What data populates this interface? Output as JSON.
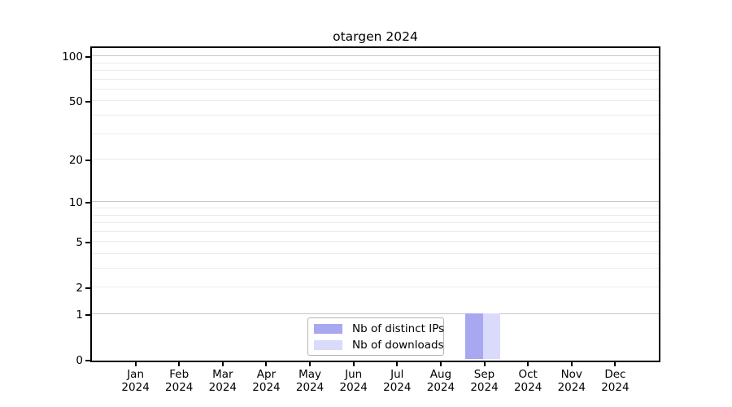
{
  "chart_data": {
    "type": "bar",
    "title": "otargen 2024",
    "categories": [
      "Jan 2024",
      "Feb 2024",
      "Mar 2024",
      "Apr 2024",
      "May 2024",
      "Jun 2024",
      "Jul 2024",
      "Aug 2024",
      "Sep 2024",
      "Oct 2024",
      "Nov 2024",
      "Dec 2024"
    ],
    "series": [
      {
        "name": "Nb of distinct IPs",
        "color": "#a8a8f0",
        "values": [
          0,
          0,
          0,
          0,
          0,
          0,
          0,
          0,
          1,
          0,
          0,
          0
        ]
      },
      {
        "name": "Nb of downloads",
        "color": "#dadafa",
        "values": [
          0,
          0,
          0,
          0,
          0,
          0,
          0,
          0,
          1,
          0,
          0,
          0
        ]
      }
    ],
    "xlabel": "",
    "ylabel": "",
    "yscale": "log1p",
    "ylim": [
      0,
      115
    ],
    "y_ticks": [
      0,
      1,
      2,
      5,
      10,
      20,
      50,
      100
    ],
    "y_major_gridlines": [
      1,
      10,
      100
    ],
    "y_minor_gridlines": [
      2,
      3,
      4,
      5,
      6,
      7,
      8,
      9,
      20,
      30,
      40,
      50,
      60,
      70,
      80,
      90
    ],
    "grid": "horizontal",
    "legend_position": "bottom-center-inside",
    "colors": {
      "axis": "#000000",
      "major_grid": "#c6c6c6",
      "minor_grid": "#ebebeb",
      "background": "#ffffff"
    }
  }
}
